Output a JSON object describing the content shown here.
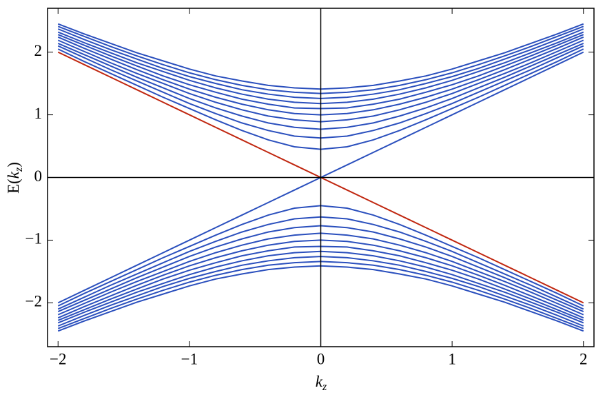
{
  "chart_data": {
    "type": "line",
    "xlabel": [
      "k",
      "z"
    ],
    "ylabel": [
      "E(",
      "k",
      "z",
      ")"
    ],
    "x": [
      -2,
      -1.8,
      -1.6,
      -1.4,
      -1.2,
      -1,
      -0.8,
      -0.6,
      -0.4,
      -0.2,
      0,
      0.2,
      0.4,
      0.6,
      0.8,
      1,
      1.2,
      1.4,
      1.6,
      1.8,
      2
    ],
    "xlim": [
      -2.08,
      2.08
    ],
    "ylim": [
      -2.7,
      2.7
    ],
    "xticks": [
      {
        "value": -2,
        "label": "−2"
      },
      {
        "value": -1,
        "label": "−1"
      },
      0,
      1,
      2
    ],
    "yticks": [
      {
        "value": -2,
        "label": "−2"
      },
      {
        "value": -1,
        "label": "−1"
      },
      0,
      1,
      2
    ],
    "series": [
      {
        "color": "#2a4fbd",
        "values": [
          2.05,
          1.85,
          1.66,
          1.47,
          1.28,
          1.1,
          0.92,
          0.75,
          0.6,
          0.49,
          0.45,
          0.49,
          0.6,
          0.75,
          0.92,
          1.1,
          1.28,
          1.47,
          1.66,
          1.85,
          2.05
        ]
      },
      {
        "color": "#2a4fbd",
        "values": [
          2.1,
          1.91,
          1.72,
          1.54,
          1.36,
          1.18,
          1.02,
          0.87,
          0.75,
          0.66,
          0.63,
          0.66,
          0.75,
          0.87,
          1.02,
          1.18,
          1.36,
          1.54,
          1.72,
          1.91,
          2.1
        ]
      },
      {
        "color": "#2a4fbd",
        "values": [
          2.14,
          1.96,
          1.78,
          1.6,
          1.43,
          1.26,
          1.11,
          0.98,
          0.87,
          0.8,
          0.77,
          0.8,
          0.87,
          0.98,
          1.11,
          1.26,
          1.43,
          1.6,
          1.78,
          1.96,
          2.14
        ]
      },
      {
        "color": "#2a4fbd",
        "values": [
          2.19,
          2.01,
          1.83,
          1.66,
          1.5,
          1.34,
          1.2,
          1.08,
          0.98,
          0.92,
          0.89,
          0.92,
          0.98,
          1.08,
          1.2,
          1.34,
          1.5,
          1.66,
          1.83,
          2.01,
          2.19
        ]
      },
      {
        "color": "#2a4fbd",
        "values": [
          2.24,
          2.06,
          1.89,
          1.72,
          1.56,
          1.41,
          1.28,
          1.17,
          1.08,
          1.02,
          1,
          1.02,
          1.08,
          1.17,
          1.28,
          1.41,
          1.56,
          1.72,
          1.89,
          2.06,
          2.24
        ]
      },
      {
        "color": "#2a4fbd",
        "values": [
          2.28,
          2.11,
          1.94,
          1.78,
          1.62,
          1.48,
          1.36,
          1.25,
          1.17,
          1.11,
          1.1,
          1.11,
          1.17,
          1.25,
          1.36,
          1.48,
          1.62,
          1.78,
          1.94,
          2.11,
          2.28
        ]
      },
      {
        "color": "#2a4fbd",
        "values": [
          2.32,
          2.15,
          1.99,
          1.83,
          1.69,
          1.55,
          1.43,
          1.33,
          1.25,
          1.2,
          1.18,
          1.2,
          1.25,
          1.33,
          1.43,
          1.55,
          1.69,
          1.83,
          1.99,
          2.15,
          2.32
        ]
      },
      {
        "color": "#2a4fbd",
        "values": [
          2.37,
          2.2,
          2.04,
          1.89,
          1.74,
          1.61,
          1.5,
          1.4,
          1.33,
          1.28,
          1.26,
          1.28,
          1.33,
          1.4,
          1.5,
          1.61,
          1.74,
          1.89,
          2.04,
          2.2,
          2.37
        ]
      },
      {
        "color": "#2a4fbd",
        "values": [
          2.41,
          2.25,
          2.09,
          1.94,
          1.8,
          1.67,
          1.56,
          1.47,
          1.4,
          1.36,
          1.34,
          1.36,
          1.4,
          1.47,
          1.56,
          1.67,
          1.8,
          1.94,
          2.09,
          2.25,
          2.41
        ]
      },
      {
        "color": "#2a4fbd",
        "values": [
          2.45,
          2.29,
          2.14,
          1.99,
          1.86,
          1.73,
          1.62,
          1.54,
          1.47,
          1.43,
          1.41,
          1.43,
          1.47,
          1.54,
          1.62,
          1.73,
          1.86,
          1.99,
          2.14,
          2.29,
          2.45
        ]
      },
      {
        "color": "#2a4fbd",
        "values": [
          -2.05,
          -1.85,
          -1.66,
          -1.47,
          -1.28,
          -1.1,
          -0.92,
          -0.75,
          -0.6,
          -0.49,
          -0.45,
          -0.49,
          -0.6,
          -0.75,
          -0.92,
          -1.1,
          -1.28,
          -1.47,
          -1.66,
          -1.85,
          -2.05
        ]
      },
      {
        "color": "#2a4fbd",
        "values": [
          -2.1,
          -1.91,
          -1.72,
          -1.54,
          -1.36,
          -1.18,
          -1.02,
          -0.87,
          -0.75,
          -0.66,
          -0.63,
          -0.66,
          -0.75,
          -0.87,
          -1.02,
          -1.18,
          -1.36,
          -1.54,
          -1.72,
          -1.91,
          -2.1
        ]
      },
      {
        "color": "#2a4fbd",
        "values": [
          -2.14,
          -1.96,
          -1.78,
          -1.6,
          -1.43,
          -1.26,
          -1.11,
          -0.98,
          -0.87,
          -0.8,
          -0.77,
          -0.8,
          -0.87,
          -0.98,
          -1.11,
          -1.26,
          -1.43,
          -1.6,
          -1.78,
          -1.96,
          -2.14
        ]
      },
      {
        "color": "#2a4fbd",
        "values": [
          -2.19,
          -2.01,
          -1.83,
          -1.66,
          -1.5,
          -1.34,
          -1.2,
          -1.08,
          -0.98,
          -0.92,
          -0.89,
          -0.92,
          -0.98,
          -1.08,
          -1.2,
          -1.34,
          -1.5,
          -1.66,
          -1.83,
          -2.01,
          -2.19
        ]
      },
      {
        "color": "#2a4fbd",
        "values": [
          -2.24,
          -2.06,
          -1.89,
          -1.72,
          -1.56,
          -1.41,
          -1.28,
          -1.17,
          -1.08,
          -1.02,
          -1,
          -1.02,
          -1.08,
          -1.17,
          -1.28,
          -1.41,
          -1.56,
          -1.72,
          -1.89,
          -2.06,
          -2.24
        ]
      },
      {
        "color": "#2a4fbd",
        "values": [
          -2.28,
          -2.11,
          -1.94,
          -1.78,
          -1.62,
          -1.48,
          -1.36,
          -1.25,
          -1.17,
          -1.11,
          -1.1,
          -1.11,
          -1.17,
          -1.25,
          -1.36,
          -1.48,
          -1.62,
          -1.78,
          -1.94,
          -2.11,
          -2.28
        ]
      },
      {
        "color": "#2a4fbd",
        "values": [
          -2.32,
          -2.15,
          -1.99,
          -1.83,
          -1.69,
          -1.55,
          -1.43,
          -1.33,
          -1.25,
          -1.2,
          -1.18,
          -1.2,
          -1.25,
          -1.33,
          -1.43,
          -1.55,
          -1.69,
          -1.83,
          -1.99,
          -2.15,
          -2.32
        ]
      },
      {
        "color": "#2a4fbd",
        "values": [
          -2.37,
          -2.2,
          -2.04,
          -1.89,
          -1.74,
          -1.61,
          -1.5,
          -1.4,
          -1.33,
          -1.28,
          -1.26,
          -1.28,
          -1.33,
          -1.4,
          -1.5,
          -1.61,
          -1.74,
          -1.89,
          -2.04,
          -2.2,
          -2.37
        ]
      },
      {
        "color": "#2a4fbd",
        "values": [
          -2.41,
          -2.25,
          -2.09,
          -1.94,
          -1.8,
          -1.67,
          -1.56,
          -1.47,
          -1.4,
          -1.36,
          -1.34,
          -1.36,
          -1.4,
          -1.47,
          -1.56,
          -1.67,
          -1.8,
          -1.94,
          -2.09,
          -2.25,
          -2.41
        ]
      },
      {
        "color": "#2a4fbd",
        "values": [
          -2.45,
          -2.29,
          -2.14,
          -1.99,
          -1.86,
          -1.73,
          -1.62,
          -1.54,
          -1.47,
          -1.43,
          -1.41,
          -1.43,
          -1.47,
          -1.54,
          -1.62,
          -1.73,
          -1.86,
          -1.99,
          -2.14,
          -2.29,
          -2.45
        ]
      },
      {
        "color": "#2a4fbd",
        "values": [
          -2,
          -1.8,
          -1.6,
          -1.4,
          -1.2,
          -1,
          -0.8,
          -0.6,
          -0.4,
          -0.2,
          0,
          0.2,
          0.4,
          0.6,
          0.8,
          1,
          1.2,
          1.4,
          1.6,
          1.8,
          2
        ]
      },
      {
        "color": "#c0260f",
        "values": [
          2,
          1.8,
          1.6,
          1.4,
          1.2,
          1,
          0.8,
          0.6,
          0.4,
          0.2,
          0,
          -0.2,
          -0.4,
          -0.6,
          -0.8,
          -1,
          -1.2,
          -1.4,
          -1.6,
          -1.8,
          -2
        ]
      }
    ]
  }
}
